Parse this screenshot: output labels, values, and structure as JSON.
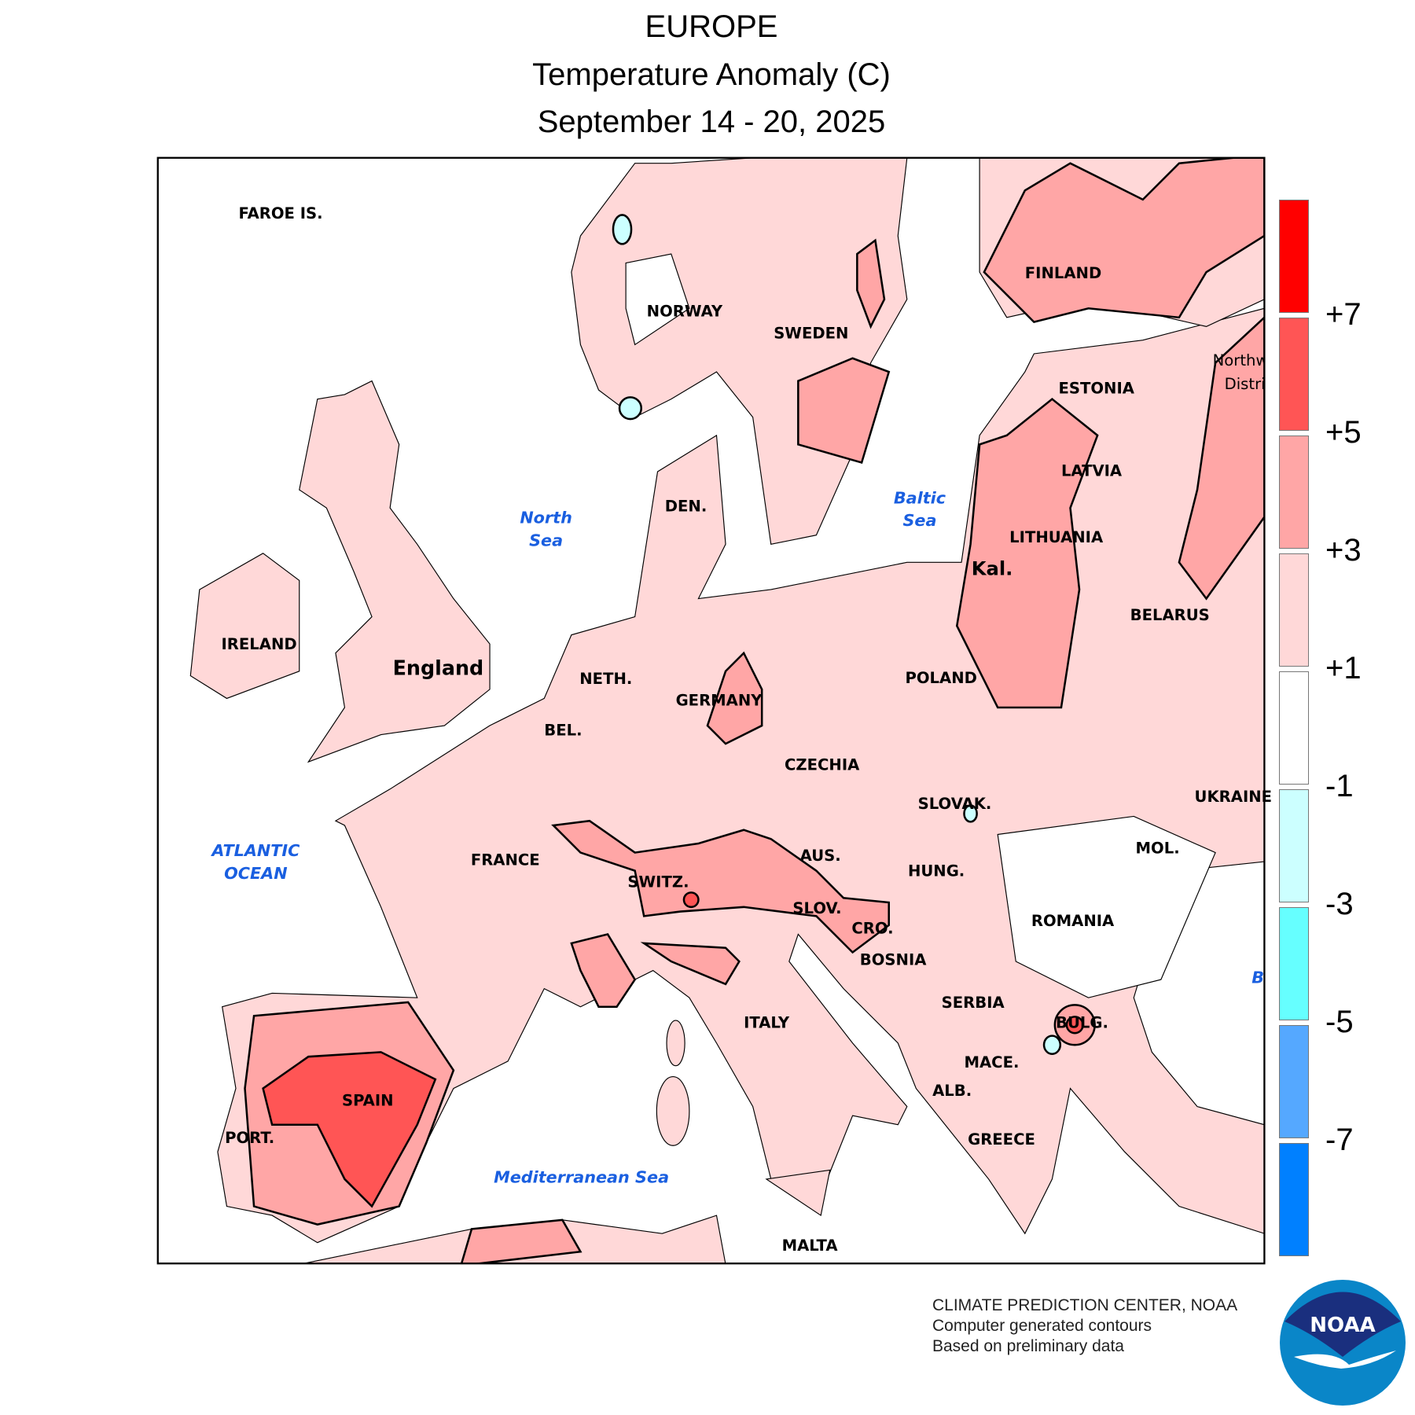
{
  "title": {
    "line1": "EUROPE",
    "line2": "Temperature Anomaly (C)",
    "line3": "September 14 - 20, 2025"
  },
  "map": {
    "countries": {
      "faroe": "FAROE IS.",
      "norway": "NORWAY",
      "sweden": "SWEDEN",
      "finland": "FINLAND",
      "estonia": "ESTONIA",
      "latvia": "LATVIA",
      "lithuania": "LITHUANIA",
      "kal": "Kal.",
      "belarus": "BELARUS",
      "poland": "POLAND",
      "germany": "GERMANY",
      "neth": "NETH.",
      "bel": "BEL.",
      "den": "DEN.",
      "czechia": "CZECHIA",
      "slovak": "SLOVAK.",
      "ukraine": "UKRAINE",
      "aus": "AUS.",
      "hung": "HUNG.",
      "switz": "SWITZ.",
      "france": "FRANCE",
      "slov": "SLOV.",
      "cro": "CRO.",
      "bosnia": "BOSNIA",
      "romania": "ROMANIA",
      "mol": "MOL.",
      "serbia": "SERBIA",
      "bulg": "BULG.",
      "mace": "MACE.",
      "alb": "ALB.",
      "greece": "GREECE",
      "italy": "ITALY",
      "malta": "MALTA",
      "spain": "SPAIN",
      "port": "PORT.",
      "ireland": "IRELAND",
      "england": "England",
      "nw1": "Northw",
      "nw2": "Distri"
    },
    "seas": {
      "north1": "North",
      "north2": "Sea",
      "baltic1": "Baltic",
      "baltic2": "Sea",
      "atlantic1": "ATLANTIC",
      "atlantic2": "OCEAN",
      "med": "Mediterranean Sea",
      "black": "B"
    }
  },
  "legend": {
    "colors": [
      "#ff0000",
      "#ff5555",
      "#ffa6a6",
      "#ffd8d8",
      "#ffffff",
      "#ccffff",
      "#66ffff",
      "#55a8ff",
      "#0080ff"
    ],
    "labels": [
      "+7",
      "+5",
      "+3",
      "+1",
      "-1",
      "-3",
      "-5",
      "-7"
    ]
  },
  "footer": {
    "line1": "CLIMATE PREDICTION CENTER, NOAA",
    "line2": "Computer generated contours",
    "line3": "Based on preliminary data"
  },
  "logo": {
    "text": "NOAA"
  }
}
